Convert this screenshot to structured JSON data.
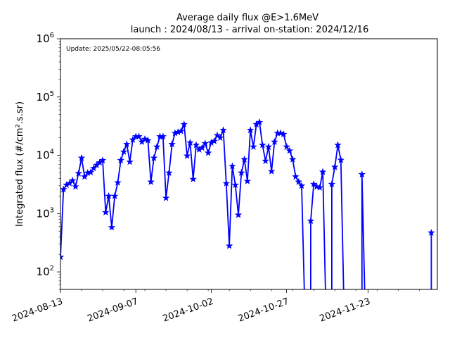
{
  "chart_data": {
    "type": "line",
    "title": "Average daily flux @E>1.6MeV",
    "subtitle": "launch : 2024/08/13 - arrival on-station: 2024/12/16",
    "annotation": "Update: 2025/05/22-08:05:56",
    "ylabel": "Integrated flux (#/cm².s.sr)",
    "xlabel": "",
    "yscale": "log",
    "ylim": [
      50,
      1000000
    ],
    "xlim": [
      "2024-08-13",
      "2024-12-16"
    ],
    "grid": false,
    "x_ticks": [
      "2024-08-13",
      "2024-09-07",
      "2024-10-02",
      "2024-10-27",
      "2024-11-23"
    ],
    "y_ticks": [
      {
        "value": 100,
        "mantissa": "10",
        "exp": "2"
      },
      {
        "value": 1000,
        "mantissa": "10",
        "exp": "3"
      },
      {
        "value": 10000,
        "mantissa": "10",
        "exp": "4"
      },
      {
        "value": 100000,
        "mantissa": "10",
        "exp": "5"
      },
      {
        "value": 1000000,
        "mantissa": "10",
        "exp": "6"
      }
    ],
    "series": [
      {
        "color": "#0000ff",
        "marker": "star",
        "points": [
          [
            "2024-08-13",
            180
          ],
          [
            "2024-08-14",
            2600
          ],
          [
            "2024-08-15",
            3100
          ],
          [
            "2024-08-16",
            3300
          ],
          [
            "2024-08-17",
            3700
          ],
          [
            "2024-08-18",
            2900
          ],
          [
            "2024-08-19",
            4900
          ],
          [
            "2024-08-20",
            9000
          ],
          [
            "2024-08-21",
            4300
          ],
          [
            "2024-08-22",
            5000
          ],
          [
            "2024-08-23",
            5100
          ],
          [
            "2024-08-24",
            6000
          ],
          [
            "2024-08-25",
            6800
          ],
          [
            "2024-08-26",
            7500
          ],
          [
            "2024-08-27",
            8200
          ],
          [
            "2024-08-28",
            1050
          ],
          [
            "2024-08-29",
            2000
          ],
          [
            "2024-08-30",
            580
          ],
          [
            "2024-08-31",
            2000
          ],
          [
            "2024-09-01",
            3400
          ],
          [
            "2024-09-02",
            8200
          ],
          [
            "2024-09-03",
            11500
          ],
          [
            "2024-09-04",
            15500
          ],
          [
            "2024-09-05",
            7700
          ],
          [
            "2024-09-06",
            18500
          ],
          [
            "2024-09-07",
            21000
          ],
          [
            "2024-09-08",
            21000
          ],
          [
            "2024-09-09",
            17000
          ],
          [
            "2024-09-10",
            19000
          ],
          [
            "2024-09-11",
            18000
          ],
          [
            "2024-09-12",
            3500
          ],
          [
            "2024-09-13",
            9000
          ],
          [
            "2024-09-14",
            14000
          ],
          [
            "2024-09-15",
            21000
          ],
          [
            "2024-09-16",
            21000
          ],
          [
            "2024-09-17",
            1850
          ],
          [
            "2024-09-18",
            5000
          ],
          [
            "2024-09-19",
            15500
          ],
          [
            "2024-09-20",
            24000
          ],
          [
            "2024-09-21",
            25000
          ],
          [
            "2024-09-22",
            26000
          ],
          [
            "2024-09-23",
            34000
          ],
          [
            "2024-09-24",
            9800
          ],
          [
            "2024-09-25",
            16500
          ],
          [
            "2024-09-26",
            3900
          ],
          [
            "2024-09-27",
            15000
          ],
          [
            "2024-09-28",
            12500
          ],
          [
            "2024-09-29",
            13500
          ],
          [
            "2024-09-30",
            16000
          ],
          [
            "2024-10-01",
            11000
          ],
          [
            "2024-10-02",
            16500
          ],
          [
            "2024-10-03",
            17500
          ],
          [
            "2024-10-04",
            22000
          ],
          [
            "2024-10-05",
            20000
          ],
          [
            "2024-10-06",
            27000
          ],
          [
            "2024-10-07",
            3300
          ],
          [
            "2024-10-08",
            280
          ],
          [
            "2024-10-09",
            6500
          ],
          [
            "2024-10-10",
            3100
          ],
          [
            "2024-10-11",
            950
          ],
          [
            "2024-10-12",
            5000
          ],
          [
            "2024-10-13",
            8500
          ],
          [
            "2024-10-14",
            3600
          ],
          [
            "2024-10-15",
            27000
          ],
          [
            "2024-10-16",
            14000
          ],
          [
            "2024-10-17",
            34000
          ],
          [
            "2024-10-18",
            37000
          ],
          [
            "2024-10-19",
            15000
          ],
          [
            "2024-10-20",
            8000
          ],
          [
            "2024-10-21",
            14000
          ],
          [
            "2024-10-22",
            5300
          ],
          [
            "2024-10-23",
            17000
          ],
          [
            "2024-10-24",
            24000
          ],
          [
            "2024-10-25",
            24000
          ],
          [
            "2024-10-26",
            23000
          ],
          [
            "2024-10-27",
            14000
          ],
          [
            "2024-10-28",
            12000
          ],
          [
            "2024-10-29",
            8500
          ],
          [
            "2024-10-30",
            4300
          ],
          [
            "2024-10-31",
            3500
          ],
          [
            "2024-11-01",
            3000
          ],
          [
            "2024-11-02",
            null
          ],
          [
            "2024-11-03",
            null
          ],
          [
            "2024-11-04",
            750
          ],
          [
            "2024-11-05",
            3200
          ],
          [
            "2024-11-06",
            2900
          ],
          [
            "2024-11-07",
            2800
          ],
          [
            "2024-11-08",
            5200
          ],
          [
            "2024-11-09",
            null
          ],
          [
            "2024-11-10",
            null
          ],
          [
            "2024-11-11",
            3200
          ],
          [
            "2024-11-12",
            6300
          ],
          [
            "2024-11-13",
            15000
          ],
          [
            "2024-11-14",
            8300
          ],
          [
            "2024-11-15",
            null
          ],
          [
            "2024-11-16",
            null
          ],
          [
            "2024-11-17",
            null
          ],
          [
            "2024-11-18",
            null
          ],
          [
            "2024-11-19",
            null
          ],
          [
            "2024-11-20",
            null
          ],
          [
            "2024-11-21",
            4700
          ],
          [
            "2024-11-22",
            null
          ],
          [
            "2024-12-14",
            470
          ]
        ]
      }
    ]
  }
}
